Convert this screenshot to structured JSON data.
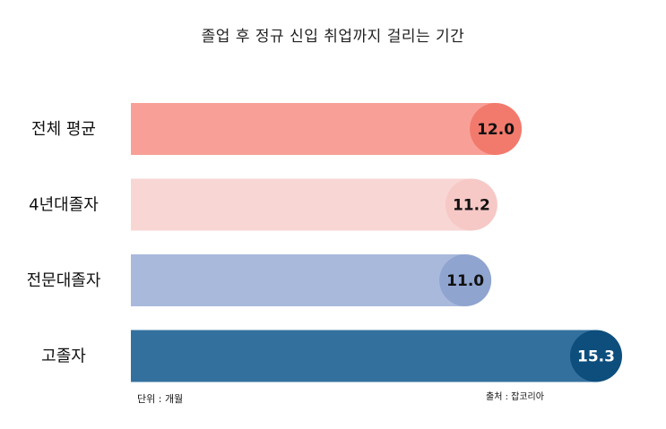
{
  "chart_data": {
    "type": "bar",
    "orientation": "horizontal",
    "title": "졸업 후 정규 신입 취업까지 걸리는 기간",
    "categories": [
      "전체 평균",
      "4년대졸자",
      "전문대졸자",
      "고졸자"
    ],
    "values": [
      12.0,
      11.2,
      11.0,
      15.3
    ],
    "value_labels": [
      "12.0",
      "11.2",
      "11.0",
      "15.3"
    ],
    "bar_colors": [
      "#f8a097",
      "#f8d6d4",
      "#a9b9dc",
      "#34709e"
    ],
    "marker_colors": [
      "#f27a6d",
      "#f6c9c6",
      "#8fa4cf",
      "#0d4e7d"
    ],
    "label_colors": [
      "#111111",
      "#111111",
      "#111111",
      "#ffffff"
    ],
    "xlim": [
      0,
      16
    ],
    "grid": false,
    "legend": "none",
    "unit_note": "단위 : 개월",
    "source_note": "출처 : 잡코리아"
  }
}
